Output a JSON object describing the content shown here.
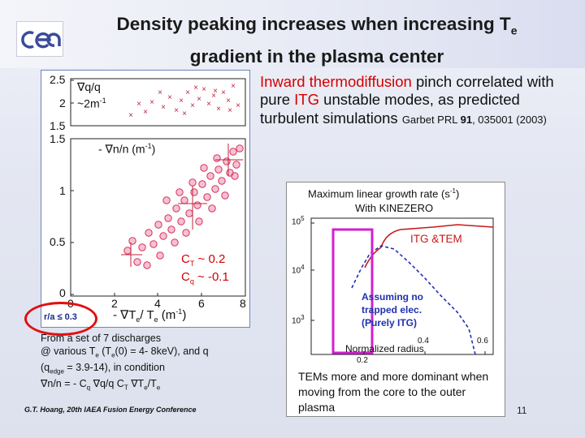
{
  "title": {
    "line1": "Density peaking increases when increasing T",
    "line1_sub": "e",
    "line2": "gradient in the plasma center"
  },
  "logo": {
    "text": "cea"
  },
  "left_plot": {
    "top_panel": {
      "label": "∇q/q",
      "label2": "~2m",
      "label2_sup": "-1",
      "yticks": [
        "2.5",
        "2",
        "1.5"
      ]
    },
    "main_panel": {
      "ylabel": "- ∇n/n (m",
      "ylabel_sup": "-1",
      "ylabel_end": ")",
      "yticks": [
        "1.5",
        "1",
        "0.5",
        "0"
      ],
      "xticks": [
        "0",
        "2",
        "4",
        "6",
        "8"
      ],
      "xlabel": "- ∇T",
      "xlabel_sub1": "e",
      "xlabel_mid": "/ T",
      "xlabel_sub2": "e",
      "xlabel_end": " (m",
      "xlabel_sup": "-1",
      "xlabel_close": ")",
      "cT_label": "C",
      "cT_sub": "T",
      "cT_value": " ~ 0.2",
      "cq_label": "C",
      "cq_sub": "q",
      "cq_value": " ~ -0.1"
    },
    "ra_label": "r/a ≤ 0.3"
  },
  "right_text": {
    "red1": "Inward thermodiffusion",
    "black1": " pinch correlated with pure ",
    "red2": "ITG",
    "black2": " unstable modes, as predicted turbulent simulations ",
    "ref": "Garbet PRL ",
    "ref_vol": "91",
    "ref_rest": ", 035001 (2003)"
  },
  "growth_plot": {
    "title1": "Maximum linear growth rate (s",
    "title1_sup": "-1",
    "title1_end": ")",
    "title2": "With KINEZERO",
    "label_itg_tem": "ITG &TEM",
    "assume1": "Assuming no",
    "assume2": "trapped elec.",
    "assume3": "(Purely ITG)",
    "yticks": [
      "10",
      "10",
      "10"
    ],
    "ytick_sups": [
      "5",
      "4",
      "3"
    ],
    "xticks": [
      "0.2",
      "0.4",
      "0.6"
    ],
    "xlabel": "Normalized radius",
    "caption": "TEMs more and more dominant when moving from the core to the outer plasma"
  },
  "bottom_left": {
    "line1": "From a set of 7 discharges",
    "line2a": "@ various T",
    "line2b": "e",
    "line2c": " (T",
    "line2d": "e",
    "line2e": "(0) = 4- 8keV), and q",
    "line3a": "(q",
    "line3b": "edge",
    "line3c": " = 3.9-14), in condition",
    "line4a": "∇n/n = - C",
    "line4b": "q",
    "line4c": " ∇q/q   C",
    "line4d": "T",
    "line4e": " ∇T",
    "line4f": "e",
    "line4g": "/T",
    "line4h": "e"
  },
  "footer": "G.T. Hoang, 20th IAEA Fusion Energy Conference",
  "page_number": "11",
  "colors": {
    "title_red": "#d40000",
    "oval_red": "#e01010",
    "magenta_box": "#d020d0",
    "itg_tem_curve": "#c81818",
    "purely_itg_curve": "#2030b0",
    "scatter_marker": "#d83060"
  }
}
